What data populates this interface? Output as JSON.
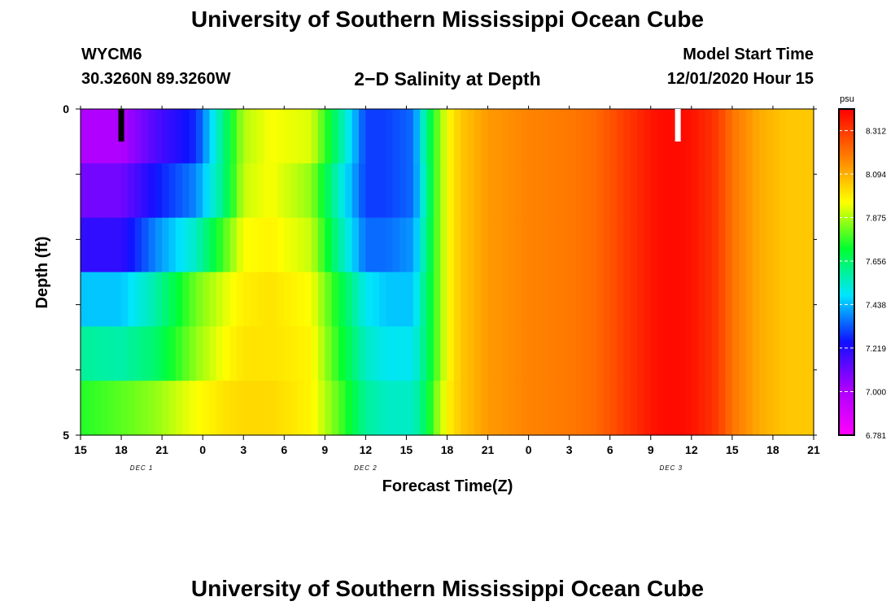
{
  "page": {
    "title_top": "University of Southern Mississippi Ocean Cube",
    "title_bottom": "University of Southern Mississippi Ocean Cube",
    "station_id": "WYCM6",
    "station_coords": "30.3260N 89.3260W",
    "model_start_label": "Model Start Time",
    "model_start_value": "12/01/2020 Hour 15"
  },
  "colors": {
    "colorbar_scale": [
      "#ff00ff",
      "#aa00ff",
      "#1010ff",
      "#00e5ff",
      "#00ff30",
      "#ffff00",
      "#ff7a00",
      "#ff0000"
    ],
    "marker_start": "#000000",
    "marker_now": "#ffffff"
  },
  "chart_data": {
    "type": "heatmap",
    "title": "2−D Salinity at Depth",
    "xlabel": "Forecast Time(Z)",
    "ylabel": "Depth (ft)",
    "x_ticks": [
      "15",
      "18",
      "21",
      "0",
      "3",
      "6",
      "9",
      "12",
      "15",
      "18",
      "21",
      "0",
      "3",
      "6",
      "9",
      "12",
      "15",
      "18",
      "21"
    ],
    "x_range_hours": [
      0,
      54
    ],
    "date_labels": [
      {
        "label": "DEC 1",
        "hour": 4.5
      },
      {
        "label": "DEC 2",
        "hour": 21
      },
      {
        "label": "DEC 3",
        "hour": 43.5
      }
    ],
    "y_ticks": [
      "0",
      "5"
    ],
    "ylim": [
      0,
      5
    ],
    "depth_rows": [
      0.25,
      1,
      2,
      3,
      4,
      4.75
    ],
    "colorbar": {
      "unit": "psu",
      "ticks": [
        "8.312",
        "8.094",
        "7.875",
        "7.656",
        "7.438",
        "7.219",
        "7.000",
        "6.781"
      ],
      "min": 6.781,
      "max": 8.421
    },
    "markers": [
      {
        "name": "start",
        "hour": 3
      },
      {
        "name": "current",
        "hour": 44
      }
    ],
    "salinity_profiles": {
      "hours": [
        0,
        3,
        5.5,
        8.5,
        10.5,
        12,
        14,
        17,
        19,
        21,
        22.5,
        24.5,
        25.5,
        26,
        27,
        28,
        30,
        33,
        36,
        38,
        40,
        42,
        43,
        44.5,
        46,
        47,
        48,
        50,
        52,
        54
      ],
      "rows": [
        [
          7.0,
          7.0,
          7.15,
          7.28,
          7.62,
          7.88,
          7.95,
          7.92,
          7.62,
          7.3,
          7.3,
          7.35,
          7.62,
          7.75,
          7.95,
          8.05,
          8.13,
          8.17,
          8.19,
          8.22,
          8.3,
          8.38,
          8.4,
          8.4,
          8.35,
          8.3,
          8.2,
          8.1,
          8.05,
          8.05
        ],
        [
          7.1,
          7.1,
          7.25,
          7.38,
          7.62,
          7.9,
          7.95,
          7.85,
          7.55,
          7.3,
          7.3,
          7.35,
          7.6,
          7.75,
          7.95,
          8.05,
          8.13,
          8.17,
          8.19,
          8.22,
          8.3,
          8.38,
          8.4,
          8.4,
          8.35,
          8.3,
          8.2,
          8.1,
          8.05,
          8.05
        ],
        [
          7.2,
          7.2,
          7.38,
          7.55,
          7.78,
          7.95,
          7.97,
          7.9,
          7.6,
          7.35,
          7.35,
          7.4,
          7.62,
          7.75,
          7.95,
          8.05,
          8.13,
          8.17,
          8.19,
          8.22,
          8.3,
          8.38,
          8.4,
          8.4,
          8.35,
          8.3,
          8.2,
          8.1,
          8.05,
          8.05
        ],
        [
          7.45,
          7.45,
          7.58,
          7.82,
          7.92,
          7.98,
          8.0,
          7.95,
          7.72,
          7.5,
          7.45,
          7.45,
          7.65,
          7.75,
          7.95,
          8.05,
          8.13,
          8.17,
          8.19,
          8.22,
          8.3,
          8.38,
          8.4,
          8.4,
          8.35,
          8.3,
          8.2,
          8.1,
          8.05,
          8.05
        ],
        [
          7.6,
          7.58,
          7.65,
          7.85,
          7.95,
          8.0,
          8.0,
          7.97,
          7.75,
          7.55,
          7.5,
          7.5,
          7.65,
          7.75,
          7.95,
          8.05,
          8.13,
          8.17,
          8.19,
          8.22,
          8.3,
          8.38,
          8.4,
          8.4,
          8.35,
          8.3,
          8.2,
          8.1,
          8.05,
          8.05
        ],
        [
          7.75,
          7.8,
          7.85,
          7.95,
          8.0,
          8.02,
          8.02,
          7.97,
          7.8,
          7.6,
          7.55,
          7.55,
          7.68,
          7.8,
          7.97,
          8.05,
          8.13,
          8.17,
          8.19,
          8.22,
          8.3,
          8.38,
          8.4,
          8.4,
          8.35,
          8.3,
          8.2,
          8.1,
          8.05,
          8.05
        ]
      ]
    }
  }
}
